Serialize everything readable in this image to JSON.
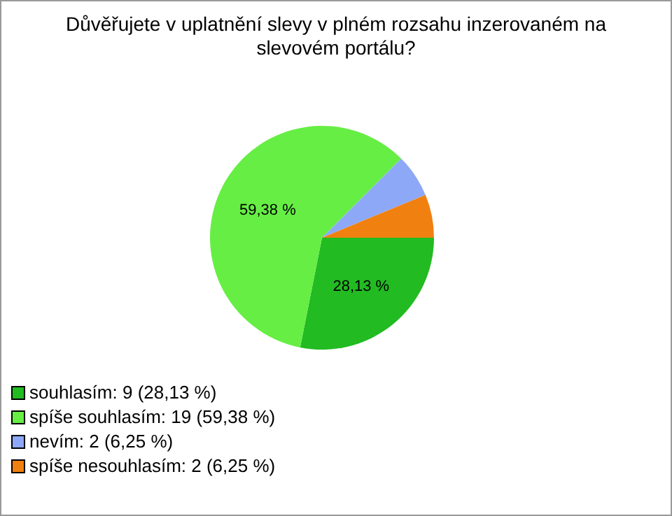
{
  "chart_data": {
    "type": "pie",
    "title": "Důvěřujete v uplatnění slevy v plném rozsahu inzerovaném na slevovém portálu?",
    "categories": [
      "souhlasím: 9 (28,13 %)",
      "spíše souhlasím: 19 (59,38 %)",
      "nevím: 2 (6,25 %)",
      "spíše nesouhlasím: 2 (6,25 %)"
    ],
    "values": [
      28.13,
      59.38,
      6.25,
      6.25
    ],
    "colors": [
      "#22bb22",
      "#66ee44",
      "#8ea8f8",
      "#f08010"
    ],
    "value_labels": [
      "28,13 %",
      "59,38 %",
      null,
      null
    ],
    "legend": "bottom left"
  }
}
